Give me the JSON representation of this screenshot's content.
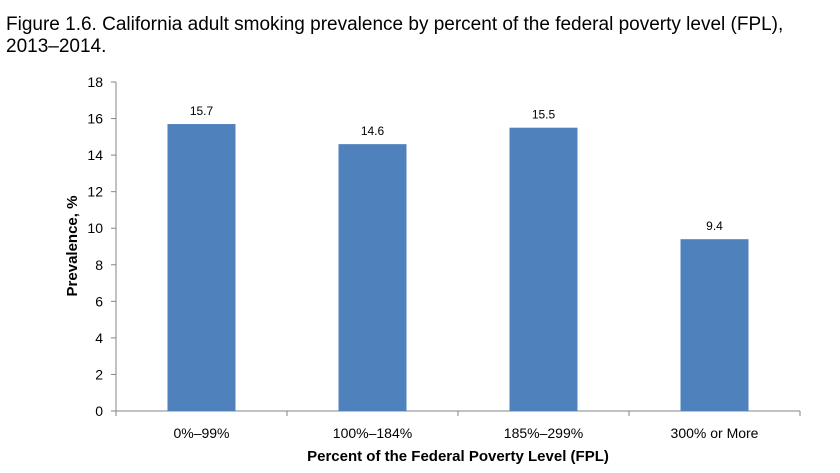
{
  "figure": {
    "title": "Figure 1.6. California adult smoking prevalence by percent of the federal poverty level (FPL), 2013–2014."
  },
  "chart_data": {
    "type": "bar",
    "title": "Figure 1.6. California adult smoking prevalence by percent of the federal poverty level (FPL), 2013–2014.",
    "categories": [
      "0%–99%",
      "100%–184%",
      "185%–299%",
      "300% or More"
    ],
    "values": [
      15.7,
      14.6,
      15.5,
      9.4
    ],
    "data_labels": [
      "15.7",
      "14.6",
      "15.5",
      "9.4"
    ],
    "xlabel": "Percent of the Federal Poverty Level (FPL)",
    "ylabel": "Prevalence, %",
    "ylim": [
      0,
      18
    ],
    "yticks": [
      0,
      2,
      4,
      6,
      8,
      10,
      12,
      14,
      16,
      18
    ],
    "grid": false,
    "legend": "none",
    "bar_color": "#4f81bd",
    "axis_color": "#868686"
  }
}
